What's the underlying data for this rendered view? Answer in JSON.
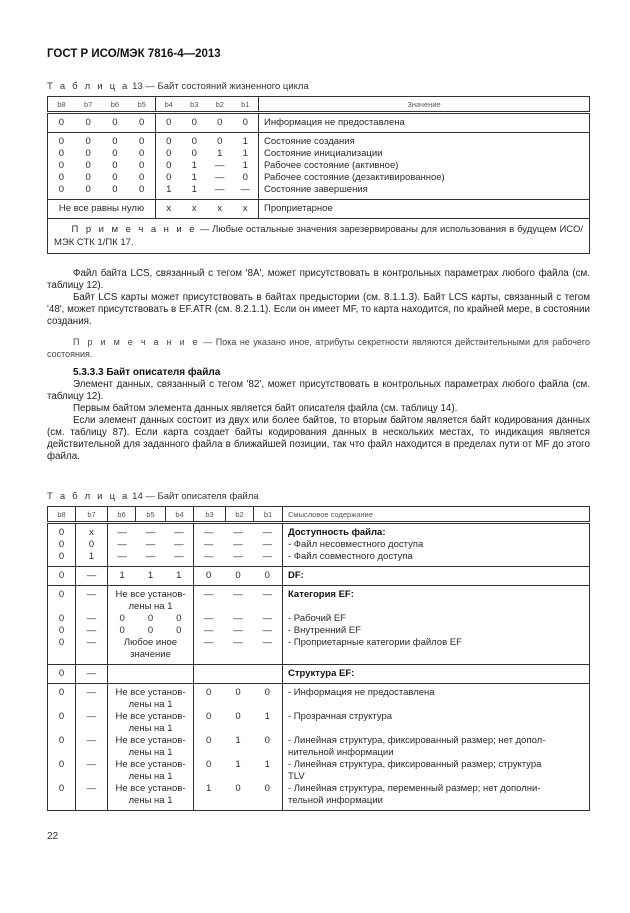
{
  "header": {
    "title": "ГОСТ Р ИСО/МЭК 7816-4—2013"
  },
  "table13": {
    "caption_word": "Т а б л и ц а",
    "caption_rest": " 13 — Байт состояний жизненного цикла",
    "headers": [
      "b8",
      "b7",
      "b6",
      "b5",
      "b4",
      "b3",
      "b2",
      "b1",
      "Значение"
    ],
    "rows": [
      {
        "g1": [
          [
            "0",
            "0",
            "0",
            "0"
          ]
        ],
        "g2": [
          [
            "0",
            "0",
            "0",
            "0"
          ]
        ],
        "meaning": [
          "Информация не предоставлена"
        ]
      },
      {
        "g1": [
          [
            "0",
            "0",
            "0",
            "0"
          ],
          [
            "0",
            "0",
            "0",
            "0"
          ],
          [
            "0",
            "0",
            "0",
            "0"
          ],
          [
            "0",
            "0",
            "0",
            "0"
          ],
          [
            "0",
            "0",
            "0",
            "0"
          ]
        ],
        "g2": [
          [
            "0",
            "0",
            "0",
            "1"
          ],
          [
            "0",
            "0",
            "1",
            "1"
          ],
          [
            "0",
            "1",
            "—",
            "1"
          ],
          [
            "0",
            "1",
            "—",
            "0"
          ],
          [
            "1",
            "1",
            "—",
            "—"
          ]
        ],
        "meaning": [
          "Состояние создания",
          "Состояние инициализации",
          "Рабочее состояние (активное)",
          "Рабочее состояние (дезактивированное)",
          "Состояние завершения"
        ]
      },
      {
        "g1": [
          "Не все равны нулю"
        ],
        "g2": [
          [
            "x",
            "x",
            "x",
            "x"
          ]
        ],
        "meaning": [
          "Проприетарное"
        ]
      }
    ],
    "note_label": "П р и м е ч а н и е",
    "note_text": " — Любые остальные значения зарезервированы для использования в будущем ИСО/МЭК СТК 1/ПК 17."
  },
  "body": {
    "p1": "Файл байта LCS, связанный с тегом '8A', может присутствовать в контрольных параметрах любого файла (см. таблицу 12).",
    "p2": "Байт LCS карты может присутствовать в байтах предыстории (см. 8.1.1.3). Байт LCS карты, связанный с тегом '48', может присутствовать в EF.ATR (см. 8.2.1.1). Если он имеет MF, то карта находится, по крайней мере, в состоянии создания.",
    "note_label": "П р и м е ч а н и е",
    "note_text": " — Пока не указано иное, атрибуты секретности являются действительными для рабочего состояния.",
    "heading": "5.3.3.3 Байт описателя файла",
    "p3": "Элемент данных, связанный с тегом '82', может присутствовать в контрольных параметрах любого файла (см. таблицу 12).",
    "p4": "Первым байтом элемента данных является байт описателя файла (см. таблицу 14).",
    "p5": "Если элемент данных состоит из двух или более байтов, то вторым байтом является байт кодирования данных (см. таблицу 87). Если карта создает байты кодирования данных в нескольких местах, то индикация является действительной для заданного файла в ближайшей позиции, так что файл находится в пределах пути от MF до этого файла."
  },
  "table14": {
    "caption_word": "Т а б л и ц а",
    "caption_rest": " 14 — Байт описателя файла",
    "headers": [
      "b8",
      "b7",
      "b6",
      "b5",
      "b4",
      "b3",
      "b2",
      "b1",
      "Смысловое содержание"
    ],
    "rows": [
      {
        "b8": [
          "0",
          "0",
          "0"
        ],
        "b7": [
          "x",
          "0",
          "1"
        ],
        "g1": [
          [
            "—",
            "—",
            "—"
          ],
          [
            "—",
            "—",
            "—"
          ],
          [
            "—",
            "—",
            "—"
          ]
        ],
        "g2": [
          [
            "—",
            "—",
            "—"
          ],
          [
            "—",
            "—",
            "—"
          ],
          [
            "—",
            "—",
            "—"
          ]
        ],
        "meaning": [
          "Доступность файла:",
          "- Файл несовместного доступа",
          "- Файл совместного доступа"
        ]
      },
      {
        "b8": [
          "0"
        ],
        "b7": [
          "—"
        ],
        "g1": [
          [
            "1",
            "1",
            "1"
          ]
        ],
        "g2": [
          [
            "0",
            "0",
            "0"
          ]
        ],
        "meaning": [
          "DF:"
        ]
      },
      {
        "b8": [
          "0",
          "",
          "0",
          "0",
          "0"
        ],
        "b7": [
          "—",
          "",
          "—",
          "—",
          "—"
        ],
        "g1": [
          "Не все установ-",
          "лены на 1",
          [
            "0",
            "0",
            "0"
          ],
          [
            "0",
            "0",
            "0"
          ],
          "Любое иное",
          "значение"
        ],
        "g2": [
          [
            "—",
            "—",
            "—"
          ],
          "",
          [
            "—",
            "—",
            "—"
          ],
          [
            "—",
            "—",
            "—"
          ],
          [
            "—",
            "—",
            "—"
          ]
        ],
        "meaning": [
          "Категория EF:",
          "",
          "- Рабочий EF",
          "- Внутренний EF",
          "- Проприетарные категории файлов EF"
        ]
      },
      {
        "b8": [
          "0"
        ],
        "b7": [
          "—"
        ],
        "g1": [
          ""
        ],
        "g2": [
          ""
        ],
        "meaning": [
          "Структура EF:"
        ]
      },
      {
        "b8": [
          "0",
          "",
          "0",
          "",
          "0",
          "",
          "0",
          "",
          "0"
        ],
        "b7": [
          "—",
          "",
          "—",
          "",
          "—",
          "",
          "—",
          "",
          "—"
        ],
        "g1": [
          "Не все установ-",
          "лены на 1",
          "Не все установ-",
          "лены на 1",
          "Не все установ-",
          "лены на 1",
          "Не все установ-",
          "лены на 1",
          "Не все установ-",
          "лены на 1"
        ],
        "g2": [
          [
            "0",
            "0",
            "0"
          ],
          "",
          [
            "0",
            "0",
            "1"
          ],
          "",
          [
            "0",
            "1",
            "0"
          ],
          "",
          [
            "0",
            "1",
            "1"
          ],
          "",
          [
            "1",
            "0",
            "0"
          ]
        ],
        "meaning": [
          "- Информация не предоставлена",
          "",
          "- Прозрачная структура",
          "",
          "- Линейная структура, фиксированный размер; нет допол-",
          "нительной информации",
          "- Линейная структура, фиксированный размер; структура",
          "TLV",
          "- Линейная структура, переменный размер; нет дополни-",
          "тельной информации"
        ]
      }
    ]
  },
  "footer": {
    "page_number": "22"
  }
}
